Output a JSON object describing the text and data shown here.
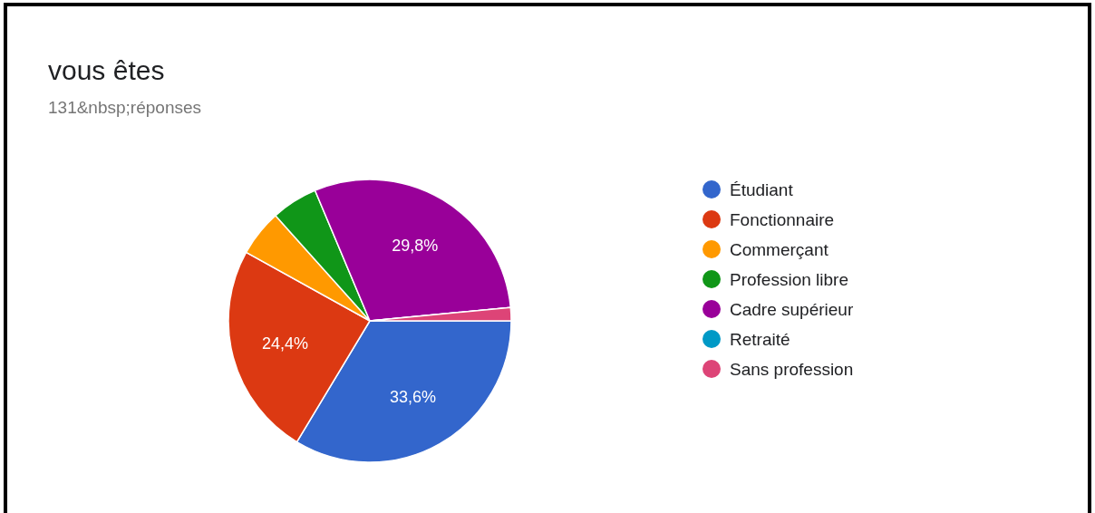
{
  "chart_data": {
    "type": "pie",
    "title": "vous êtes",
    "subtitle": "131&nbsp;réponses",
    "categories": [
      "Étudiant",
      "Fonctionnaire",
      "Commerçant",
      "Profession libre",
      "Cadre supérieur",
      "Retraité",
      "Sans profession"
    ],
    "values": [
      33.6,
      24.4,
      5.3,
      5.3,
      29.8,
      0,
      1.5
    ],
    "colors": [
      "#3366cc",
      "#dc3912",
      "#ff9900",
      "#109618",
      "#990099",
      "#0099c6",
      "#dd4477"
    ],
    "value_labels": [
      "33,6%",
      "24,4%",
      null,
      null,
      "29,8%",
      null,
      null
    ],
    "legend": "right"
  }
}
